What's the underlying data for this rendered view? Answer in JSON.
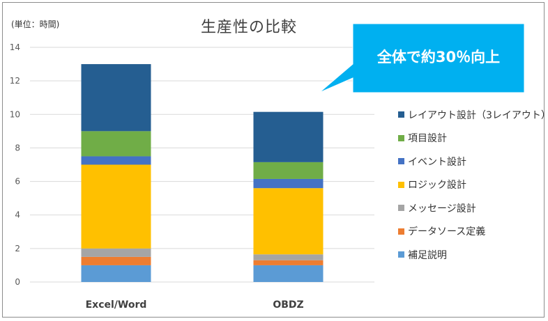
{
  "chart_data": {
    "type": "bar",
    "stacked": true,
    "title": "生産性の比較",
    "unit_label": "(単位：時間)",
    "categories": [
      "Excel/Word",
      "OBDZ"
    ],
    "ylim": [
      0,
      14
    ],
    "yticks": [
      0,
      2,
      4,
      6,
      8,
      10,
      12,
      14
    ],
    "grid": true,
    "legend_position": "right",
    "series": [
      {
        "name": "補足説明",
        "color": "#5b9bd5",
        "values": [
          1.0,
          1.0
        ]
      },
      {
        "name": "データソース定義",
        "color": "#ed7d31",
        "values": [
          0.5,
          0.3
        ]
      },
      {
        "name": "メッセージ設計",
        "color": "#a5a5a5",
        "values": [
          0.5,
          0.35
        ]
      },
      {
        "name": "ロジック設計",
        "color": "#ffc000",
        "values": [
          5.0,
          3.95
        ]
      },
      {
        "name": "イベント設計",
        "color": "#4472c4",
        "values": [
          0.5,
          0.55
        ]
      },
      {
        "name": "項目設計",
        "color": "#70ad47",
        "values": [
          1.5,
          1.0
        ]
      },
      {
        "name": "レイアウト設計（3レイアウト）",
        "color": "#255e91",
        "values": [
          4.0,
          3.0
        ]
      }
    ],
    "annotation": {
      "text": "全体で約30％向上",
      "color": "#00b0f0"
    }
  }
}
